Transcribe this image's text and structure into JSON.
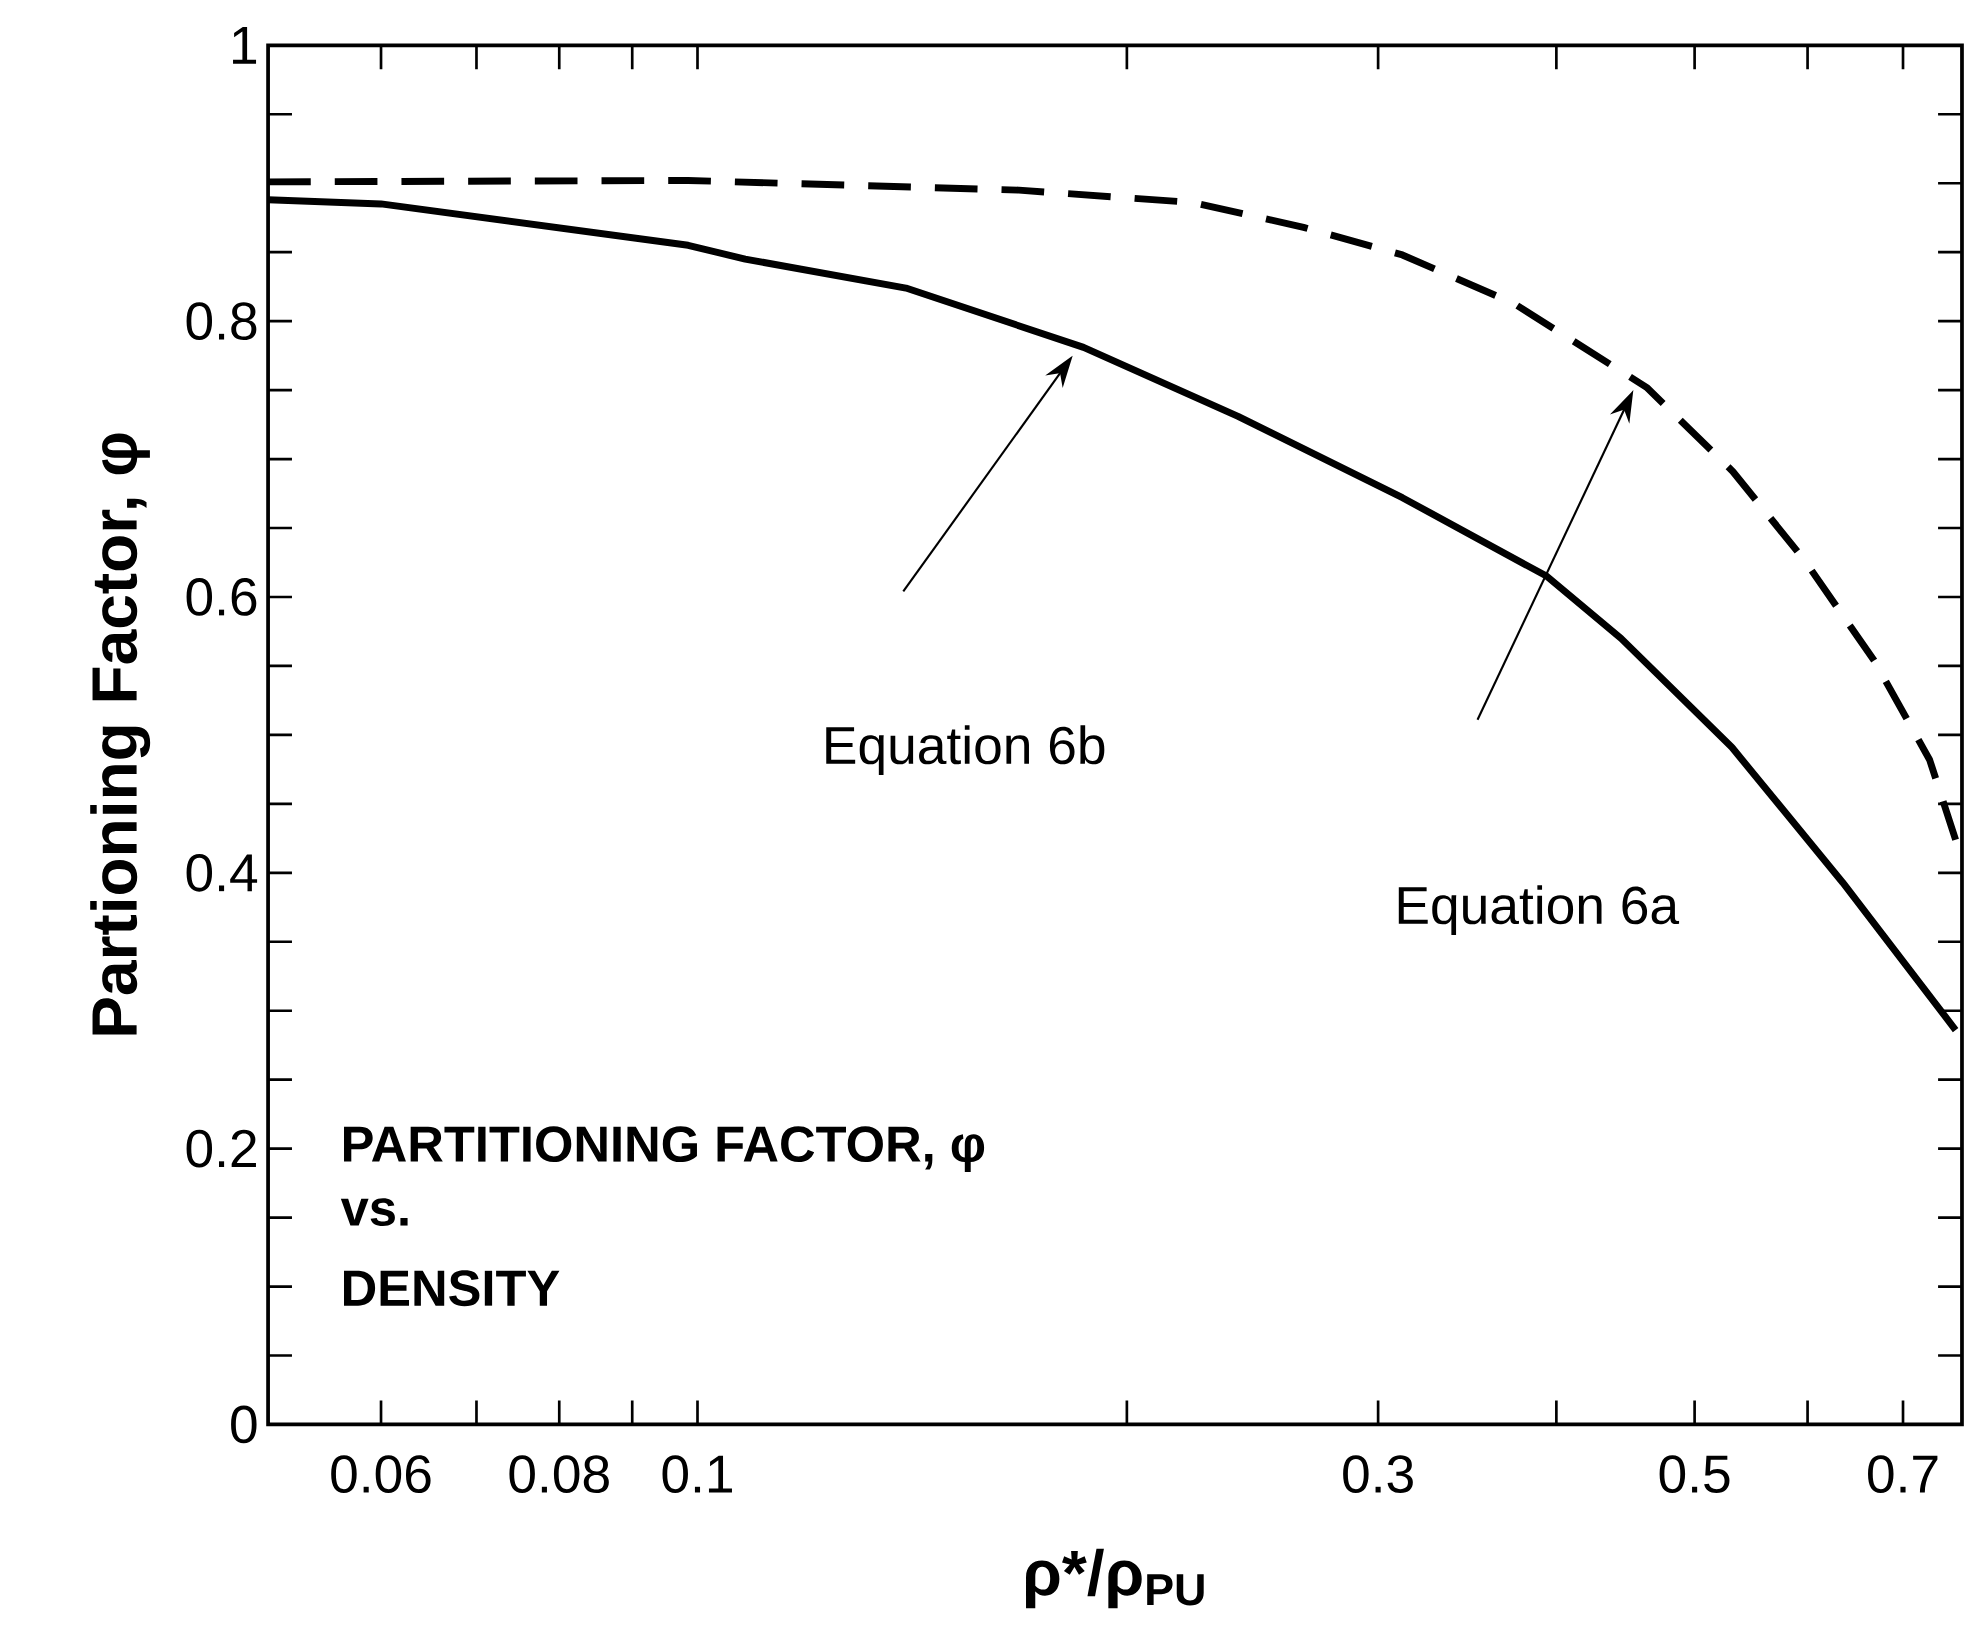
{
  "chart_data": {
    "type": "line",
    "xlabel": "ρ*/ρ$_{PU}$",
    "ylabel": "Partioning Factor,   φ",
    "log": "x",
    "xlim": [
      0.05,
      0.77
    ],
    "xticks": [
      {
        "value": 0.06,
        "label": "0.06"
      },
      {
        "value": 0.07,
        "label": null
      },
      {
        "value": 0.08,
        "label": "0.08"
      },
      {
        "value": 0.09,
        "label": null
      },
      {
        "value": 0.1,
        "label": "0.1"
      },
      {
        "value": 0.2,
        "label": null
      },
      {
        "value": 0.3,
        "label": "0.3"
      },
      {
        "value": 0.4,
        "label": null
      },
      {
        "value": 0.5,
        "label": "0.5"
      },
      {
        "value": 0.6,
        "label": null
      },
      {
        "value": 0.7,
        "label": "0.7"
      }
    ],
    "ylim": [
      0,
      1
    ],
    "yticks": [
      0,
      {
        "value": 0.05,
        "label": null
      },
      {
        "value": 0.1,
        "label": null
      },
      {
        "value": 0.15,
        "label": null
      },
      0.2,
      {
        "value": 0.25,
        "label": null
      },
      {
        "value": 0.3,
        "label": null
      },
      {
        "value": 0.35,
        "label": null
      },
      0.4,
      {
        "value": 0.45,
        "label": null
      },
      {
        "value": 0.5,
        "label": null
      },
      {
        "value": 0.55,
        "label": null
      },
      0.6,
      {
        "value": 0.65,
        "label": null
      },
      {
        "value": 0.7,
        "label": null
      },
      {
        "value": 0.75,
        "label": null
      },
      0.8,
      {
        "value": 0.85,
        "label": null
      },
      {
        "value": 0.9,
        "label": null
      },
      {
        "value": 0.95,
        "label": null
      },
      1
    ],
    "grid": false,
    "marker": "none",
    "series": [
      {
        "color": "#000000",
        "line_style": "solid",
        "x": [
          0.05,
          0.06,
          0.0985,
          0.108,
          0.14,
          0.1865,
          0.2393,
          0.312,
          0.394,
          0.444,
          0.531,
          0.635,
          0.762
        ],
        "values": [
          0.888,
          0.885,
          0.855,
          0.845,
          0.824,
          0.781,
          0.731,
          0.672,
          0.615,
          0.57,
          0.491,
          0.393,
          0.286
        ]
      },
      {
        "color": "#000000",
        "line_style": "dashed",
        "x": [
          0.05,
          0.0985,
          0.168,
          0.2226,
          0.266,
          0.312,
          0.3733,
          0.4627,
          0.5318,
          0.5967,
          0.6681,
          0.7307,
          0.762
        ],
        "values": [
          0.901,
          0.902,
          0.895,
          0.886,
          0.868,
          0.848,
          0.813,
          0.752,
          0.691,
          0.627,
          0.554,
          0.482,
          0.424
        ]
      }
    ],
    "annotations": [
      "Equation 6b",
      "Equation 6a",
      "PARTITIONING FACTOR,   φ",
      "vs.",
      "DENSITY"
    ]
  }
}
